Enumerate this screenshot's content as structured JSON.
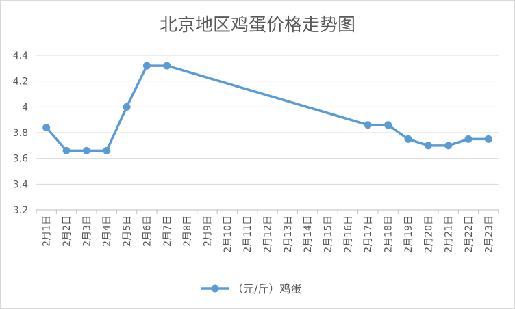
{
  "chart_data": {
    "type": "line",
    "title": "北京地区鸡蛋价格走势图",
    "xlabel": "",
    "ylabel": "",
    "ylim": [
      3.2,
      4.4
    ],
    "yticks": [
      "3.2",
      "3.4",
      "3.6",
      "3.8",
      "4",
      "4.2",
      "4.4"
    ],
    "grid": true,
    "legend_position": "bottom",
    "categories": [
      "2月1日",
      "2月2日",
      "2月3日",
      "2月4日",
      "2月5日",
      "2月6日",
      "2月7日",
      "2月8日",
      "2月9日",
      "2月10日",
      "2月11日",
      "2月12日",
      "2月13日",
      "2月14日",
      "2月15日",
      "2月16日",
      "2月17日",
      "2月18日",
      "2月19日",
      "2月20日",
      "2月21日",
      "2月22日",
      "2月23日"
    ],
    "series": [
      {
        "name": "（元/斤）鸡蛋",
        "color": "#5B9BD5",
        "values": [
          3.84,
          3.66,
          3.66,
          3.66,
          4.0,
          4.32,
          4.32,
          null,
          null,
          null,
          null,
          null,
          null,
          null,
          null,
          null,
          3.86,
          3.86,
          3.75,
          3.7,
          3.7,
          3.75,
          3.75
        ]
      }
    ]
  }
}
